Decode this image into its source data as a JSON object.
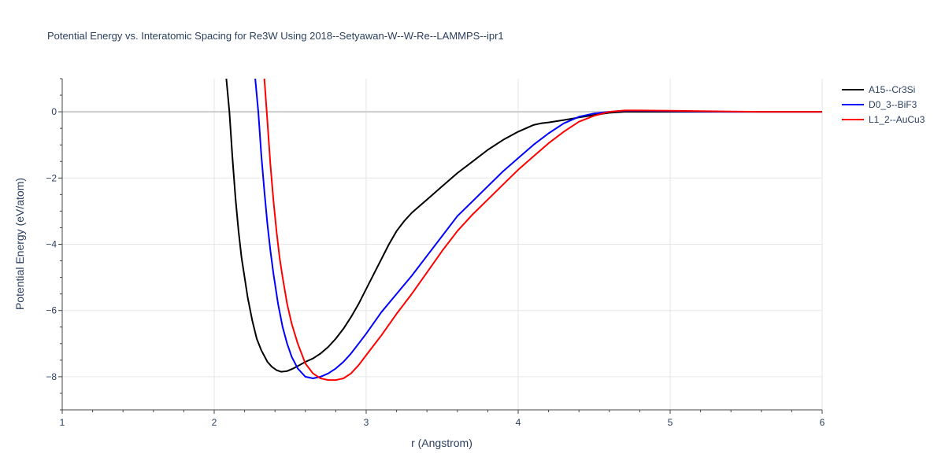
{
  "chart_data": {
    "type": "line",
    "title": "Potential Energy vs. Interatomic Spacing for Re3W Using 2018--Setyawan-W--W-Re--LAMMPS--ipr1",
    "xlabel": "r (Angstrom)",
    "ylabel": "Potential Energy (eV/atom)",
    "xlim": [
      1,
      6
    ],
    "ylim": [
      -9,
      1
    ],
    "xticks": [
      "1",
      "2",
      "3",
      "4",
      "5",
      "6"
    ],
    "yticks": [
      "0",
      "−2",
      "−4",
      "−6",
      "−8"
    ],
    "ytick_values": [
      0,
      -2,
      -4,
      -6,
      -8
    ],
    "xtick_values": [
      1,
      2,
      3,
      4,
      5,
      6
    ],
    "grid": true,
    "legend_position": "top-right",
    "series": [
      {
        "name": "A15--Cr3Si",
        "color": "#000000",
        "x": [
          2.08,
          2.1,
          2.12,
          2.14,
          2.16,
          2.18,
          2.2,
          2.22,
          2.25,
          2.28,
          2.31,
          2.35,
          2.38,
          2.41,
          2.44,
          2.48,
          2.52,
          2.56,
          2.6,
          2.65,
          2.7,
          2.75,
          2.8,
          2.85,
          2.9,
          2.95,
          3.0,
          3.05,
          3.1,
          3.15,
          3.2,
          3.25,
          3.3,
          3.35,
          3.4,
          3.5,
          3.6,
          3.7,
          3.8,
          3.9,
          4.0,
          4.1,
          4.15,
          4.2,
          4.3,
          4.4,
          4.5,
          4.6,
          4.7,
          4.8,
          5.0,
          5.2,
          5.4,
          5.6,
          5.8,
          6.0
        ],
        "y": [
          1.0,
          0.0,
          -1.4,
          -2.6,
          -3.6,
          -4.4,
          -5.0,
          -5.6,
          -6.3,
          -6.85,
          -7.2,
          -7.55,
          -7.7,
          -7.8,
          -7.85,
          -7.83,
          -7.75,
          -7.65,
          -7.55,
          -7.45,
          -7.3,
          -7.1,
          -6.85,
          -6.55,
          -6.2,
          -5.8,
          -5.35,
          -4.9,
          -4.45,
          -4.0,
          -3.6,
          -3.3,
          -3.05,
          -2.85,
          -2.65,
          -2.25,
          -1.85,
          -1.5,
          -1.15,
          -0.85,
          -0.6,
          -0.4,
          -0.35,
          -0.32,
          -0.25,
          -0.17,
          -0.1,
          -0.03,
          0.0,
          0.0,
          0.0,
          0.0,
          0.0,
          0.0,
          0.0,
          0.0
        ]
      },
      {
        "name": "D0_3--BiF3",
        "color": "#0000ff",
        "x": [
          2.27,
          2.29,
          2.31,
          2.33,
          2.35,
          2.37,
          2.39,
          2.42,
          2.45,
          2.48,
          2.51,
          2.55,
          2.6,
          2.65,
          2.7,
          2.75,
          2.8,
          2.85,
          2.9,
          2.95,
          3.0,
          3.1,
          3.2,
          3.3,
          3.4,
          3.5,
          3.6,
          3.7,
          3.8,
          3.9,
          4.0,
          4.1,
          4.2,
          4.3,
          4.4,
          4.5,
          4.6,
          4.7,
          4.8,
          5.0,
          5.2,
          5.4,
          5.6,
          5.8,
          6.0
        ],
        "y": [
          1.0,
          0.0,
          -1.3,
          -2.4,
          -3.4,
          -4.2,
          -4.9,
          -5.8,
          -6.5,
          -7.0,
          -7.4,
          -7.75,
          -8.0,
          -8.05,
          -8.0,
          -7.9,
          -7.75,
          -7.55,
          -7.3,
          -7.0,
          -6.7,
          -6.05,
          -5.5,
          -4.95,
          -4.35,
          -3.75,
          -3.15,
          -2.7,
          -2.25,
          -1.8,
          -1.4,
          -1.0,
          -0.65,
          -0.35,
          -0.15,
          -0.05,
          0.0,
          0.03,
          0.03,
          0.02,
          0.01,
          0.0,
          0.0,
          0.0,
          0.0
        ]
      },
      {
        "name": "L1_2--AuCu3",
        "color": "#ff0000",
        "x": [
          2.33,
          2.35,
          2.37,
          2.39,
          2.41,
          2.43,
          2.45,
          2.48,
          2.51,
          2.55,
          2.6,
          2.65,
          2.7,
          2.75,
          2.8,
          2.85,
          2.9,
          2.95,
          3.0,
          3.1,
          3.2,
          3.3,
          3.4,
          3.5,
          3.6,
          3.7,
          3.8,
          3.9,
          4.0,
          4.1,
          4.2,
          4.3,
          4.4,
          4.5,
          4.6,
          4.7,
          4.8,
          5.0,
          5.2,
          5.4,
          5.6,
          5.8,
          6.0
        ],
        "y": [
          1.0,
          -0.3,
          -1.6,
          -2.7,
          -3.6,
          -4.4,
          -5.0,
          -5.8,
          -6.4,
          -7.0,
          -7.6,
          -7.9,
          -8.05,
          -8.1,
          -8.1,
          -8.05,
          -7.9,
          -7.65,
          -7.35,
          -6.75,
          -6.1,
          -5.5,
          -4.85,
          -4.2,
          -3.6,
          -3.1,
          -2.65,
          -2.2,
          -1.75,
          -1.35,
          -0.95,
          -0.6,
          -0.3,
          -0.12,
          0.0,
          0.04,
          0.04,
          0.03,
          0.02,
          0.01,
          0.0,
          0.0,
          0.0
        ]
      }
    ]
  }
}
